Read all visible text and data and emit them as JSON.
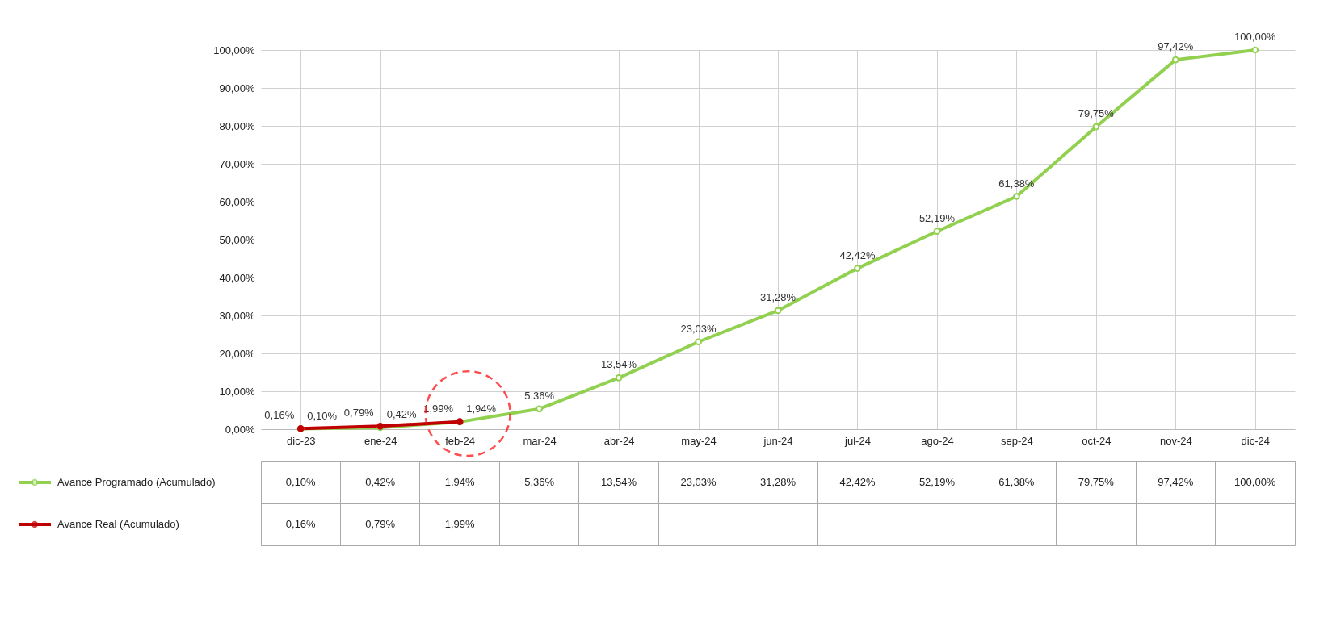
{
  "chart_data": {
    "type": "line",
    "categories": [
      "dic-23",
      "ene-24",
      "feb-24",
      "mar-24",
      "abr-24",
      "may-24",
      "jun-24",
      "jul-24",
      "ago-24",
      "sep-24",
      "oct-24",
      "nov-24",
      "dic-24"
    ],
    "series": [
      {
        "name": "Avance Programado (Acumulado)",
        "color": "#92d050",
        "values": [
          0.1,
          0.42,
          1.94,
          5.36,
          13.54,
          23.03,
          31.28,
          42.42,
          52.19,
          61.38,
          79.75,
          97.42,
          100.0
        ],
        "value_labels": [
          "0,10%",
          "0,42%",
          "1,94%",
          "5,36%",
          "13,54%",
          "23,03%",
          "31,28%",
          "42,42%",
          "52,19%",
          "61,38%",
          "79,75%",
          "97,42%",
          "100,00%"
        ]
      },
      {
        "name": "Avance Real (Acumulado)",
        "color": "#c00000",
        "values": [
          0.16,
          0.79,
          1.99,
          null,
          null,
          null,
          null,
          null,
          null,
          null,
          null,
          null,
          null
        ],
        "value_labels": [
          "0,16%",
          "0,79%",
          "1,99%",
          null,
          null,
          null,
          null,
          null,
          null,
          null,
          null,
          null,
          null
        ]
      }
    ],
    "ylim": [
      0,
      100
    ],
    "yticks": [
      {
        "value": 0,
        "label": "0,00%"
      },
      {
        "value": 10,
        "label": "10,00%"
      },
      {
        "value": 20,
        "label": "20,00%"
      },
      {
        "value": 30,
        "label": "30,00%"
      },
      {
        "value": 40,
        "label": "40,00%"
      },
      {
        "value": 50,
        "label": "50,00%"
      },
      {
        "value": 60,
        "label": "60,00%"
      },
      {
        "value": 70,
        "label": "70,00%"
      },
      {
        "value": 80,
        "label": "80,00%"
      },
      {
        "value": 90,
        "label": "90,00%"
      },
      {
        "value": 100,
        "label": "100,00%"
      }
    ],
    "grid": true,
    "legend": "bottom left",
    "marker": "circle",
    "line_style": "solid"
  }
}
